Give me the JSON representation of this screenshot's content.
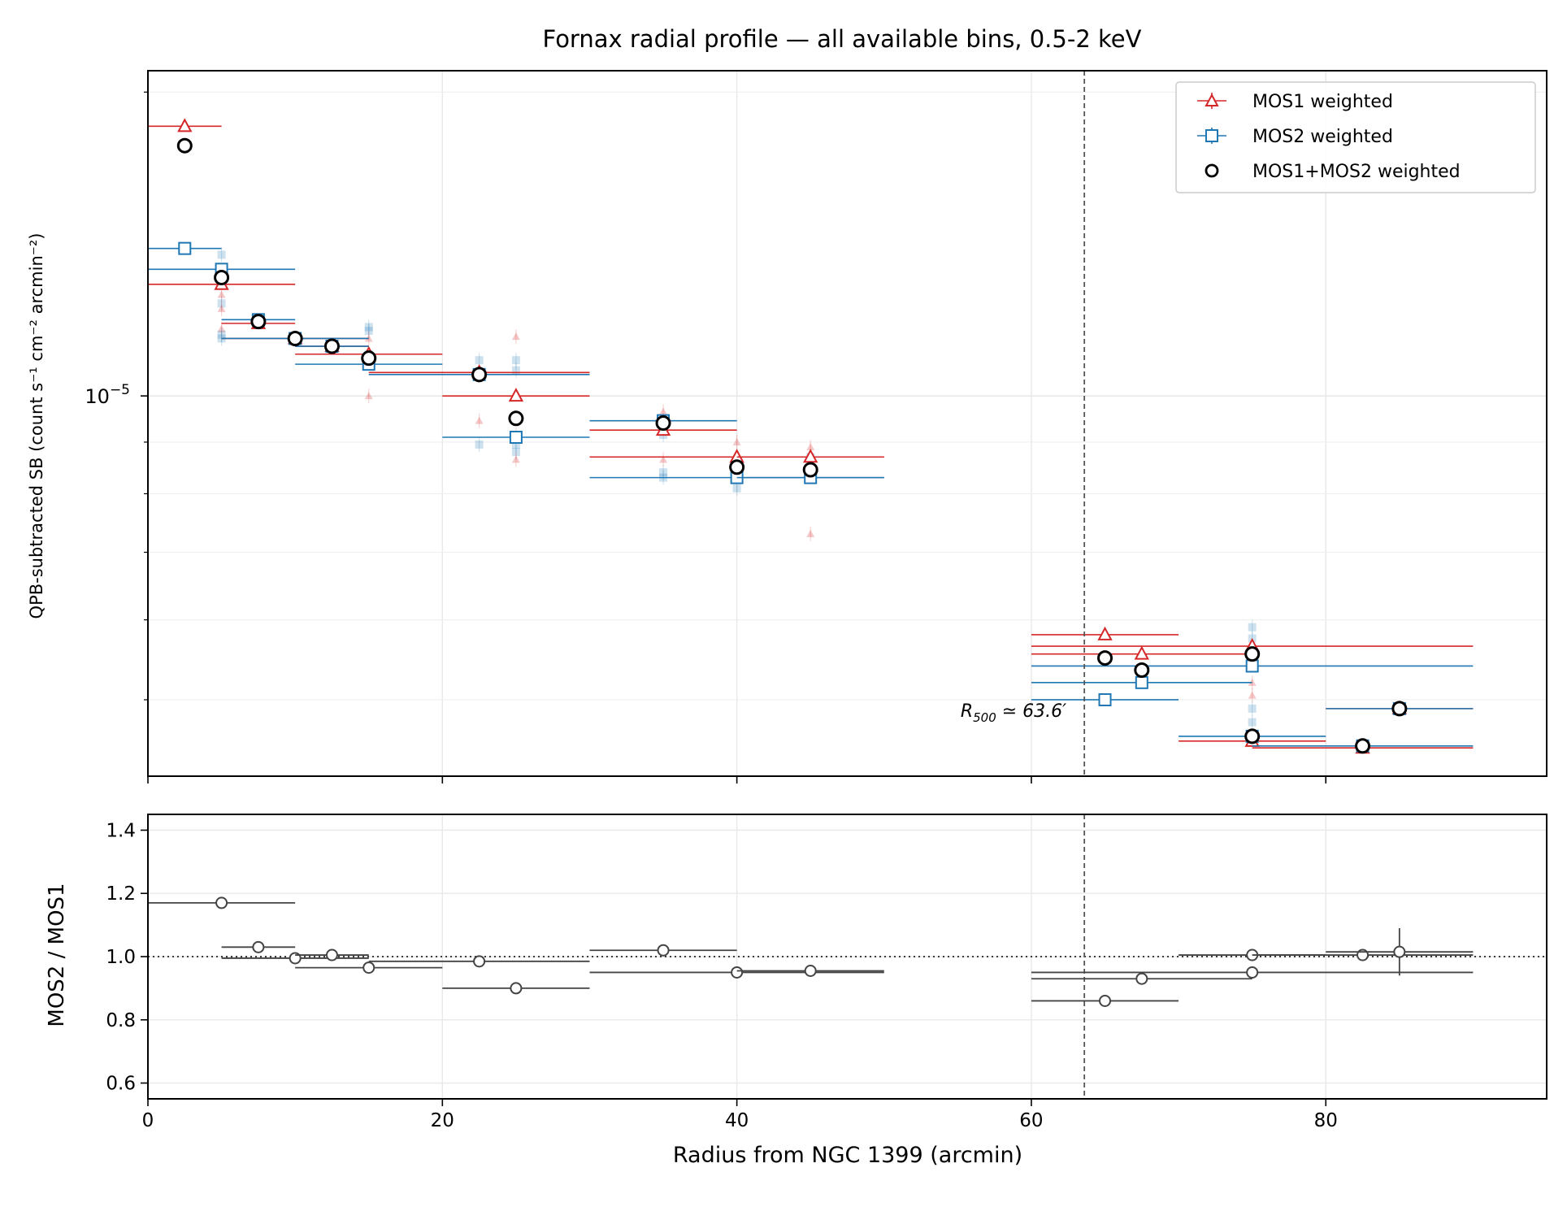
{
  "chart_data": [
    {
      "type": "scatter",
      "title": "Fornax radial profile — all available bins, 0.5-2 keV",
      "xlabel": "",
      "ylabel": "QPB-subtracted SB (count s⁻¹ cm⁻² arcmin⁻²)",
      "yscale": "log",
      "xlim": [
        0,
        95
      ],
      "ylim": [
        4.2e-06,
        2.1e-05
      ],
      "ytick_label": {
        "value": 1e-05,
        "base": "10",
        "exp": "−5"
      },
      "grid": true,
      "legend_position": "top-right",
      "reference_line": {
        "x": 63.6,
        "label_main": "R",
        "label_sub": "500",
        "label_rest": " ≃ 63.6′"
      },
      "series": [
        {
          "name": "MOS1 weighted",
          "color": "#d62728",
          "marker": "triangle",
          "points": [
            {
              "x": 2.5,
              "xerr": 2.5,
              "y": 1.85e-05
            },
            {
              "x": 5.0,
              "xerr": 5.0,
              "y": 1.29e-05
            },
            {
              "x": 7.5,
              "xerr": 2.5,
              "y": 1.18e-05
            },
            {
              "x": 10.0,
              "xerr": 5.0,
              "y": 1.14e-05
            },
            {
              "x": 12.5,
              "xerr": 2.5,
              "y": 1.12e-05
            },
            {
              "x": 15.0,
              "xerr": 5.0,
              "y": 1.1e-05
            },
            {
              "x": 22.5,
              "xerr": 7.5,
              "y": 1.055e-05
            },
            {
              "x": 25.0,
              "xerr": 5.0,
              "y": 1e-05
            },
            {
              "x": 35.0,
              "xerr": 5.0,
              "y": 9.25e-06
            },
            {
              "x": 40.0,
              "xerr": 10.0,
              "y": 8.7e-06
            },
            {
              "x": 45.0,
              "xerr": 5.0,
              "y": 8.7e-06
            },
            {
              "x": 65.0,
              "xerr": 5.0,
              "y": 5.8e-06
            },
            {
              "x": 67.5,
              "xerr": 7.5,
              "y": 5.55e-06
            },
            {
              "x": 75.0,
              "xerr": 15.0,
              "y": 5.65e-06
            },
            {
              "x": 75.0,
              "xerr": 5.0,
              "y": 4.55e-06
            },
            {
              "x": 82.5,
              "xerr": 7.5,
              "y": 4.48e-06
            },
            {
              "x": 85.0,
              "xerr": 5.0,
              "y": 4.9e-06
            }
          ]
        },
        {
          "name": "MOS2 weighted",
          "color": "#1f77b4",
          "marker": "square",
          "points": [
            {
              "x": 2.5,
              "xerr": 2.5,
              "y": 1.4e-05
            },
            {
              "x": 5.0,
              "xerr": 5.0,
              "y": 1.335e-05
            },
            {
              "x": 7.5,
              "xerr": 2.5,
              "y": 1.19e-05
            },
            {
              "x": 10.0,
              "xerr": 5.0,
              "y": 1.14e-05
            },
            {
              "x": 12.5,
              "xerr": 2.5,
              "y": 1.12e-05
            },
            {
              "x": 15.0,
              "xerr": 5.0,
              "y": 1.075e-05
            },
            {
              "x": 22.5,
              "xerr": 7.5,
              "y": 1.05e-05
            },
            {
              "x": 25.0,
              "xerr": 5.0,
              "y": 9.1e-06
            },
            {
              "x": 35.0,
              "xerr": 5.0,
              "y": 9.45e-06
            },
            {
              "x": 40.0,
              "xerr": 10.0,
              "y": 8.3e-06
            },
            {
              "x": 45.0,
              "xerr": 5.0,
              "y": 8.3e-06
            },
            {
              "x": 65.0,
              "xerr": 5.0,
              "y": 5e-06
            },
            {
              "x": 67.5,
              "xerr": 7.5,
              "y": 5.2e-06
            },
            {
              "x": 75.0,
              "xerr": 15.0,
              "y": 5.4e-06
            },
            {
              "x": 75.0,
              "xerr": 5.0,
              "y": 4.6e-06
            },
            {
              "x": 82.5,
              "xerr": 7.5,
              "y": 4.5e-06
            },
            {
              "x": 85.0,
              "xerr": 5.0,
              "y": 4.9e-06
            }
          ]
        },
        {
          "name": "MOS1+MOS2 weighted",
          "color": "#000000",
          "marker": "circle",
          "points": [
            {
              "x": 2.5,
              "y": 1.77e-05
            },
            {
              "x": 5.0,
              "y": 1.31e-05
            },
            {
              "x": 7.5,
              "y": 1.185e-05
            },
            {
              "x": 10.0,
              "y": 1.14e-05
            },
            {
              "x": 12.5,
              "y": 1.12e-05
            },
            {
              "x": 15.0,
              "y": 1.09e-05
            },
            {
              "x": 22.5,
              "y": 1.05e-05
            },
            {
              "x": 25.0,
              "y": 9.5e-06
            },
            {
              "x": 35.0,
              "y": 9.4e-06
            },
            {
              "x": 40.0,
              "y": 8.5e-06
            },
            {
              "x": 45.0,
              "y": 8.45e-06
            },
            {
              "x": 65.0,
              "y": 5.5e-06
            },
            {
              "x": 67.5,
              "y": 5.35e-06
            },
            {
              "x": 75.0,
              "y": 5.55e-06
            },
            {
              "x": 75.0,
              "y": 4.6e-06
            },
            {
              "x": 82.5,
              "y": 4.5e-06
            },
            {
              "x": 85.0,
              "y": 4.9e-06
            }
          ]
        }
      ],
      "faint_points": [
        {
          "x": 5.0,
          "y": 1.38e-05,
          "c": "b"
        },
        {
          "x": 5.0,
          "y": 1.33e-05,
          "c": "b"
        },
        {
          "x": 5.0,
          "y": 1.26e-05,
          "c": "r"
        },
        {
          "x": 5.0,
          "y": 1.235e-05,
          "c": "b"
        },
        {
          "x": 5.0,
          "y": 1.22e-05,
          "c": "r"
        },
        {
          "x": 5.0,
          "y": 1.165e-05,
          "c": "r"
        },
        {
          "x": 5.0,
          "y": 1.15e-05,
          "c": "b"
        },
        {
          "x": 5.0,
          "y": 1.14e-05,
          "c": "b"
        },
        {
          "x": 15.0,
          "y": 1.17e-05,
          "c": "b"
        },
        {
          "x": 15.0,
          "y": 1.16e-05,
          "c": "b"
        },
        {
          "x": 15.0,
          "y": 1.14e-05,
          "c": "r"
        },
        {
          "x": 15.0,
          "y": 1.1e-05,
          "c": "b"
        },
        {
          "x": 15.0,
          "y": 1.08e-05,
          "c": "b"
        },
        {
          "x": 15.0,
          "y": 1e-05,
          "c": "r"
        },
        {
          "x": 22.5,
          "y": 1.085e-05,
          "c": "b"
        },
        {
          "x": 22.5,
          "y": 9.45e-06,
          "c": "r"
        },
        {
          "x": 22.5,
          "y": 8.95e-06,
          "c": "b"
        },
        {
          "x": 25.0,
          "y": 1.145e-05,
          "c": "r"
        },
        {
          "x": 25.0,
          "y": 1.085e-05,
          "c": "b"
        },
        {
          "x": 25.0,
          "y": 1.06e-05,
          "c": "b"
        },
        {
          "x": 25.0,
          "y": 9.15e-06,
          "c": "r"
        },
        {
          "x": 25.0,
          "y": 8.95e-06,
          "c": "b"
        },
        {
          "x": 25.0,
          "y": 8.8e-06,
          "c": "b"
        },
        {
          "x": 25.0,
          "y": 8.65e-06,
          "c": "r"
        },
        {
          "x": 35.0,
          "y": 9.65e-06,
          "c": "r"
        },
        {
          "x": 35.0,
          "y": 9.45e-06,
          "c": "b"
        },
        {
          "x": 35.0,
          "y": 9.3e-06,
          "c": "b"
        },
        {
          "x": 35.0,
          "y": 9.15e-06,
          "c": "b"
        },
        {
          "x": 35.0,
          "y": 8.65e-06,
          "c": "r"
        },
        {
          "x": 35.0,
          "y": 8.4e-06,
          "c": "b"
        },
        {
          "x": 35.0,
          "y": 8.3e-06,
          "c": "b"
        },
        {
          "x": 40.0,
          "y": 9e-06,
          "c": "r"
        },
        {
          "x": 40.0,
          "y": 8.1e-06,
          "c": "b"
        },
        {
          "x": 45.0,
          "y": 8.9e-06,
          "c": "r"
        },
        {
          "x": 45.0,
          "y": 8.7e-06,
          "c": "b"
        },
        {
          "x": 45.0,
          "y": 8.55e-06,
          "c": "b"
        },
        {
          "x": 45.0,
          "y": 7.3e-06,
          "c": "r"
        },
        {
          "x": 75.0,
          "y": 5.9e-06,
          "c": "b"
        },
        {
          "x": 75.0,
          "y": 5.75e-06,
          "c": "b"
        },
        {
          "x": 75.0,
          "y": 5.2e-06,
          "c": "r"
        },
        {
          "x": 75.0,
          "y": 5.05e-06,
          "c": "r"
        },
        {
          "x": 75.0,
          "y": 4.9e-06,
          "c": "b"
        },
        {
          "x": 75.0,
          "y": 4.75e-06,
          "c": "b"
        }
      ]
    },
    {
      "type": "scatter",
      "title": "",
      "xlabel": "Radius from NGC 1399 (arcmin)",
      "ylabel": "MOS2 / MOS1",
      "xlim": [
        0,
        95
      ],
      "ylim": [
        0.55,
        1.45
      ],
      "xticks": [
        0,
        20,
        40,
        60,
        80
      ],
      "yticks": [
        "0.6",
        "0.8",
        "1.0",
        "1.2",
        "1.4"
      ],
      "reference_y": 1.0,
      "reference_line_x": 63.6,
      "grid": true,
      "series": [
        {
          "color": "#444444",
          "points": [
            {
              "x": 5.0,
              "xerr": 5.0,
              "y": 1.17
            },
            {
              "x": 7.5,
              "xerr": 2.5,
              "y": 1.03
            },
            {
              "x": 10.0,
              "xerr": 5.0,
              "y": 0.995
            },
            {
              "x": 12.5,
              "xerr": 2.5,
              "y": 1.005
            },
            {
              "x": 15.0,
              "xerr": 5.0,
              "y": 0.965
            },
            {
              "x": 22.5,
              "xerr": 7.5,
              "y": 0.985
            },
            {
              "x": 25.0,
              "xerr": 5.0,
              "y": 0.9
            },
            {
              "x": 35.0,
              "xerr": 5.0,
              "y": 1.02
            },
            {
              "x": 40.0,
              "xerr": 10.0,
              "y": 0.95
            },
            {
              "x": 45.0,
              "xerr": 5.0,
              "y": 0.955
            },
            {
              "x": 65.0,
              "xerr": 5.0,
              "y": 0.86
            },
            {
              "x": 67.5,
              "xerr": 7.5,
              "y": 0.93
            },
            {
              "x": 75.0,
              "xerr": 5.0,
              "y": 1.005
            },
            {
              "x": 75.0,
              "xerr": 15.0,
              "y": 0.95
            },
            {
              "x": 82.5,
              "xerr": 7.5,
              "y": 1.005
            },
            {
              "x": 85.0,
              "xerr": 5.0,
              "y": 1.015,
              "yerr": 0.075
            }
          ]
        }
      ]
    }
  ]
}
